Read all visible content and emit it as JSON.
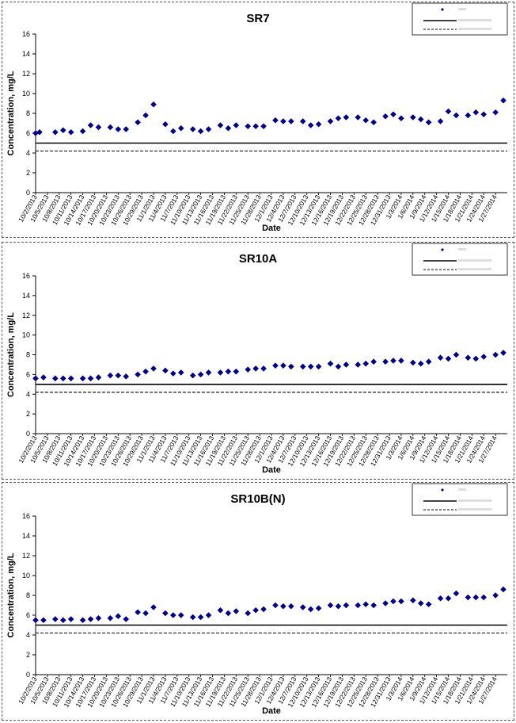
{
  "dates": [
    "10/2/2013",
    "10/5/2013",
    "10/8/2013",
    "10/11/2013",
    "10/14/2013",
    "10/17/2013",
    "10/20/2013",
    "10/23/2013",
    "10/26/2013",
    "10/29/2013",
    "11/1/2013",
    "11/4/2013",
    "11/7/2013",
    "11/10/2013",
    "11/13/2013",
    "11/16/2013",
    "11/19/2013",
    "11/22/2013",
    "11/25/2013",
    "11/28/2013",
    "12/1/2013",
    "12/4/2013",
    "12/7/2013",
    "12/10/2013",
    "12/13/2013",
    "12/16/2013",
    "12/19/2013",
    "12/22/2013",
    "12/25/2013",
    "12/28/2013",
    "12/31/2013",
    "1/3/2014",
    "1/6/2014",
    "1/9/2014",
    "1/12/2014",
    "1/15/2014",
    "1/18/2014",
    "1/21/2014",
    "1/24/2014",
    "1/27/2014"
  ],
  "chart_data": [
    {
      "type": "scatter",
      "title": "SR7",
      "xlabel": "Date",
      "ylabel": "Concentration, mg/L",
      "ylim": [
        0,
        16
      ],
      "yticks": [
        0,
        2,
        4,
        6,
        8,
        10,
        12,
        14,
        16
      ],
      "marker_color": "#00008B",
      "legend_position": "top-right",
      "reference_lines": [
        {
          "style": "solid",
          "value": 5
        },
        {
          "style": "dashed",
          "value": 4.2
        }
      ],
      "points": [
        {
          "x": "10/2/2013",
          "y": 6.0
        },
        {
          "x": "10/3/2013",
          "y": 6.1
        },
        {
          "x": "10/7/2013",
          "y": 6.1
        },
        {
          "x": "10/9/2013",
          "y": 6.3
        },
        {
          "x": "10/11/2013",
          "y": 6.1
        },
        {
          "x": "10/14/2013",
          "y": 6.2
        },
        {
          "x": "10/16/2013",
          "y": 6.8
        },
        {
          "x": "10/18/2013",
          "y": 6.6
        },
        {
          "x": "10/21/2013",
          "y": 6.6
        },
        {
          "x": "10/23/2013",
          "y": 6.4
        },
        {
          "x": "10/25/2013",
          "y": 6.4
        },
        {
          "x": "10/28/2013",
          "y": 7.1
        },
        {
          "x": "10/30/2013",
          "y": 7.8
        },
        {
          "x": "11/1/2013",
          "y": 8.9
        },
        {
          "x": "11/4/2013",
          "y": 6.9
        },
        {
          "x": "11/6/2013",
          "y": 6.2
        },
        {
          "x": "11/8/2013",
          "y": 6.5
        },
        {
          "x": "11/11/2013",
          "y": 6.4
        },
        {
          "x": "11/13/2013",
          "y": 6.2
        },
        {
          "x": "11/15/2013",
          "y": 6.4
        },
        {
          "x": "11/18/2013",
          "y": 6.8
        },
        {
          "x": "11/20/2013",
          "y": 6.5
        },
        {
          "x": "11/22/2013",
          "y": 6.8
        },
        {
          "x": "11/25/2013",
          "y": 6.7
        },
        {
          "x": "11/27/2013",
          "y": 6.7
        },
        {
          "x": "11/29/2013",
          "y": 6.7
        },
        {
          "x": "12/2/2013",
          "y": 7.3
        },
        {
          "x": "12/4/2013",
          "y": 7.2
        },
        {
          "x": "12/6/2013",
          "y": 7.2
        },
        {
          "x": "12/9/2013",
          "y": 7.2
        },
        {
          "x": "12/11/2013",
          "y": 6.8
        },
        {
          "x": "12/13/2013",
          "y": 6.9
        },
        {
          "x": "12/16/2013",
          "y": 7.2
        },
        {
          "x": "12/18/2013",
          "y": 7.5
        },
        {
          "x": "12/20/2013",
          "y": 7.6
        },
        {
          "x": "12/23/2013",
          "y": 7.6
        },
        {
          "x": "12/25/2013",
          "y": 7.3
        },
        {
          "x": "12/27/2013",
          "y": 7.1
        },
        {
          "x": "12/30/2013",
          "y": 7.7
        },
        {
          "x": "1/1/2014",
          "y": 7.9
        },
        {
          "x": "1/3/2014",
          "y": 7.5
        },
        {
          "x": "1/6/2014",
          "y": 7.6
        },
        {
          "x": "1/8/2014",
          "y": 7.4
        },
        {
          "x": "1/10/2014",
          "y": 7.1
        },
        {
          "x": "1/13/2014",
          "y": 7.2
        },
        {
          "x": "1/15/2014",
          "y": 8.2
        },
        {
          "x": "1/17/2014",
          "y": 7.8
        },
        {
          "x": "1/20/2014",
          "y": 7.8
        },
        {
          "x": "1/22/2014",
          "y": 8.1
        },
        {
          "x": "1/24/2014",
          "y": 7.9
        },
        {
          "x": "1/27/2014",
          "y": 8.1
        },
        {
          "x": "1/29/2014",
          "y": 9.3
        }
      ]
    },
    {
      "type": "scatter",
      "title": "SR10A",
      "xlabel": "Date",
      "ylabel": "Concentration, mg/L",
      "ylim": [
        0,
        16
      ],
      "yticks": [
        0,
        2,
        4,
        6,
        8,
        10,
        12,
        14,
        16
      ],
      "marker_color": "#00008B",
      "legend_position": "top-right",
      "reference_lines": [
        {
          "style": "solid",
          "value": 5
        },
        {
          "style": "dashed",
          "value": 4.2
        }
      ],
      "points": [
        {
          "x": "10/2/2013",
          "y": 5.6
        },
        {
          "x": "10/4/2013",
          "y": 5.7
        },
        {
          "x": "10/7/2013",
          "y": 5.6
        },
        {
          "x": "10/9/2013",
          "y": 5.6
        },
        {
          "x": "10/11/2013",
          "y": 5.6
        },
        {
          "x": "10/14/2013",
          "y": 5.6
        },
        {
          "x": "10/16/2013",
          "y": 5.6
        },
        {
          "x": "10/18/2013",
          "y": 5.7
        },
        {
          "x": "10/21/2013",
          "y": 5.9
        },
        {
          "x": "10/23/2013",
          "y": 5.9
        },
        {
          "x": "10/25/2013",
          "y": 5.8
        },
        {
          "x": "10/28/2013",
          "y": 6.0
        },
        {
          "x": "10/30/2013",
          "y": 6.3
        },
        {
          "x": "11/1/2013",
          "y": 6.6
        },
        {
          "x": "11/4/2013",
          "y": 6.4
        },
        {
          "x": "11/6/2013",
          "y": 6.1
        },
        {
          "x": "11/8/2013",
          "y": 6.2
        },
        {
          "x": "11/11/2013",
          "y": 5.9
        },
        {
          "x": "11/13/2013",
          "y": 6.0
        },
        {
          "x": "11/15/2013",
          "y": 6.2
        },
        {
          "x": "11/18/2013",
          "y": 6.2
        },
        {
          "x": "11/20/2013",
          "y": 6.3
        },
        {
          "x": "11/22/2013",
          "y": 6.3
        },
        {
          "x": "11/25/2013",
          "y": 6.5
        },
        {
          "x": "11/27/2013",
          "y": 6.6
        },
        {
          "x": "11/29/2013",
          "y": 6.6
        },
        {
          "x": "12/2/2013",
          "y": 6.9
        },
        {
          "x": "12/4/2013",
          "y": 6.9
        },
        {
          "x": "12/6/2013",
          "y": 6.8
        },
        {
          "x": "12/9/2013",
          "y": 6.8
        },
        {
          "x": "12/11/2013",
          "y": 6.8
        },
        {
          "x": "12/13/2013",
          "y": 6.8
        },
        {
          "x": "12/16/2013",
          "y": 7.1
        },
        {
          "x": "12/18/2013",
          "y": 6.8
        },
        {
          "x": "12/20/2013",
          "y": 7.0
        },
        {
          "x": "12/23/2013",
          "y": 7.0
        },
        {
          "x": "12/25/2013",
          "y": 7.1
        },
        {
          "x": "12/27/2013",
          "y": 7.3
        },
        {
          "x": "12/30/2013",
          "y": 7.3
        },
        {
          "x": "1/1/2014",
          "y": 7.4
        },
        {
          "x": "1/3/2014",
          "y": 7.4
        },
        {
          "x": "1/6/2014",
          "y": 7.2
        },
        {
          "x": "1/8/2014",
          "y": 7.1
        },
        {
          "x": "1/10/2014",
          "y": 7.3
        },
        {
          "x": "1/13/2014",
          "y": 7.7
        },
        {
          "x": "1/15/2014",
          "y": 7.6
        },
        {
          "x": "1/17/2014",
          "y": 8.0
        },
        {
          "x": "1/20/2014",
          "y": 7.7
        },
        {
          "x": "1/22/2014",
          "y": 7.6
        },
        {
          "x": "1/24/2014",
          "y": 7.8
        },
        {
          "x": "1/27/2014",
          "y": 8.0
        },
        {
          "x": "1/29/2014",
          "y": 8.2
        }
      ]
    },
    {
      "type": "scatter",
      "title": "SR10B(N)",
      "xlabel": "Date",
      "ylabel": "Concentration, mg/L",
      "ylim": [
        0,
        16
      ],
      "yticks": [
        0,
        2,
        4,
        6,
        8,
        10,
        12,
        14,
        16
      ],
      "marker_color": "#00008B",
      "legend_position": "top-right",
      "reference_lines": [
        {
          "style": "solid",
          "value": 5
        },
        {
          "style": "dashed",
          "value": 4.2
        }
      ],
      "points": [
        {
          "x": "10/2/2013",
          "y": 5.5
        },
        {
          "x": "10/4/2013",
          "y": 5.5
        },
        {
          "x": "10/7/2013",
          "y": 5.6
        },
        {
          "x": "10/9/2013",
          "y": 5.5
        },
        {
          "x": "10/11/2013",
          "y": 5.6
        },
        {
          "x": "10/14/2013",
          "y": 5.5
        },
        {
          "x": "10/16/2013",
          "y": 5.6
        },
        {
          "x": "10/18/2013",
          "y": 5.7
        },
        {
          "x": "10/21/2013",
          "y": 5.7
        },
        {
          "x": "10/23/2013",
          "y": 5.9
        },
        {
          "x": "10/25/2013",
          "y": 5.6
        },
        {
          "x": "10/28/2013",
          "y": 6.3
        },
        {
          "x": "10/30/2013",
          "y": 6.2
        },
        {
          "x": "11/1/2013",
          "y": 6.8
        },
        {
          "x": "11/4/2013",
          "y": 6.2
        },
        {
          "x": "11/6/2013",
          "y": 6.0
        },
        {
          "x": "11/8/2013",
          "y": 6.0
        },
        {
          "x": "11/11/2013",
          "y": 5.8
        },
        {
          "x": "11/13/2013",
          "y": 5.8
        },
        {
          "x": "11/15/2013",
          "y": 6.0
        },
        {
          "x": "11/18/2013",
          "y": 6.5
        },
        {
          "x": "11/20/2013",
          "y": 6.2
        },
        {
          "x": "11/22/2013",
          "y": 6.4
        },
        {
          "x": "11/25/2013",
          "y": 6.2
        },
        {
          "x": "11/27/2013",
          "y": 6.5
        },
        {
          "x": "11/29/2013",
          "y": 6.6
        },
        {
          "x": "12/2/2013",
          "y": 7.0
        },
        {
          "x": "12/4/2013",
          "y": 6.9
        },
        {
          "x": "12/6/2013",
          "y": 6.9
        },
        {
          "x": "12/9/2013",
          "y": 6.8
        },
        {
          "x": "12/11/2013",
          "y": 6.6
        },
        {
          "x": "12/13/2013",
          "y": 6.7
        },
        {
          "x": "12/16/2013",
          "y": 7.0
        },
        {
          "x": "12/18/2013",
          "y": 6.9
        },
        {
          "x": "12/20/2013",
          "y": 7.0
        },
        {
          "x": "12/23/2013",
          "y": 7.0
        },
        {
          "x": "12/25/2013",
          "y": 7.1
        },
        {
          "x": "12/27/2013",
          "y": 7.0
        },
        {
          "x": "12/30/2013",
          "y": 7.2
        },
        {
          "x": "1/1/2014",
          "y": 7.4
        },
        {
          "x": "1/3/2014",
          "y": 7.4
        },
        {
          "x": "1/6/2014",
          "y": 7.5
        },
        {
          "x": "1/8/2014",
          "y": 7.2
        },
        {
          "x": "1/10/2014",
          "y": 7.1
        },
        {
          "x": "1/13/2014",
          "y": 7.7
        },
        {
          "x": "1/15/2014",
          "y": 7.7
        },
        {
          "x": "1/17/2014",
          "y": 8.2
        },
        {
          "x": "1/20/2014",
          "y": 7.8
        },
        {
          "x": "1/22/2014",
          "y": 7.8
        },
        {
          "x": "1/24/2014",
          "y": 7.8
        },
        {
          "x": "1/27/2014",
          "y": 8.0
        },
        {
          "x": "1/29/2014",
          "y": 8.6
        }
      ]
    }
  ]
}
